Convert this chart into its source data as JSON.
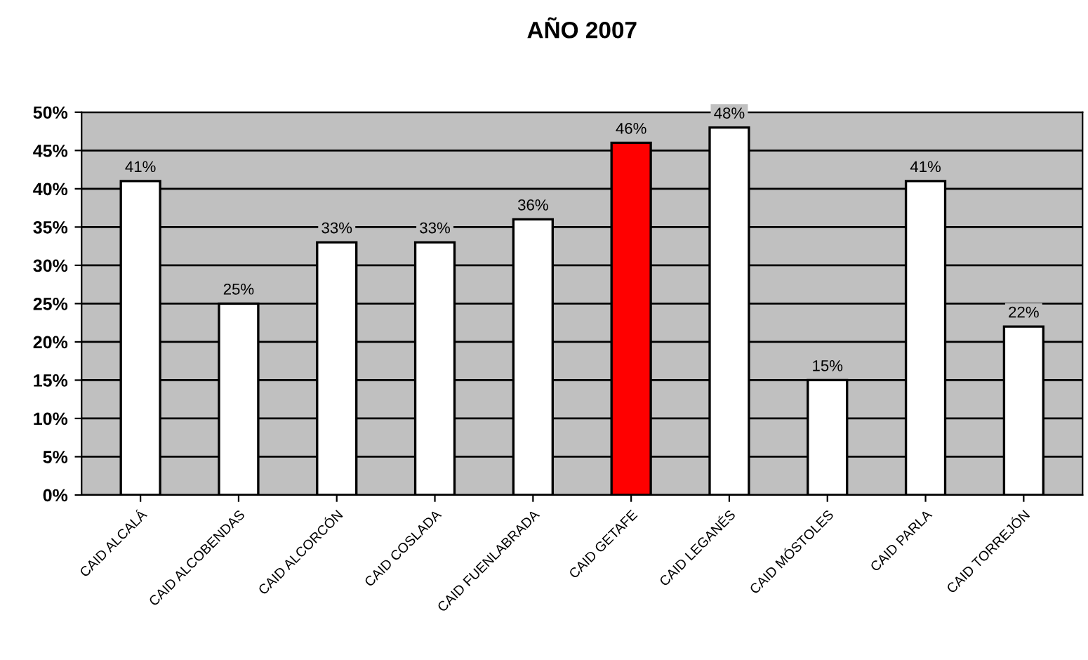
{
  "chart_data": {
    "type": "bar",
    "title": "AÑO 2007",
    "categories": [
      "CAID ALCALÁ",
      "CAID ALCOBENDAS",
      "CAID ALCORCÓN",
      "CAID COSLADA",
      "CAID FUENLABRADA",
      "CAID GETAFE",
      "CAID LEGANÉS",
      "CAID MÓSTOLES",
      "CAID PARLA",
      "CAID TORREJÓN"
    ],
    "values": [
      41,
      25,
      33,
      33,
      36,
      46,
      48,
      15,
      41,
      22
    ],
    "value_labels": [
      "41%",
      "25%",
      "33%",
      "33%",
      "36%",
      "46%",
      "48%",
      "15%",
      "41%",
      "22%"
    ],
    "colors": [
      "#ffffff",
      "#ffffff",
      "#ffffff",
      "#ffffff",
      "#ffffff",
      "#ff0000",
      "#ffffff",
      "#ffffff",
      "#ffffff",
      "#ffffff"
    ],
    "ylim": [
      0,
      50
    ],
    "yticks": [
      {
        "value": 0,
        "label": "0%"
      },
      {
        "value": 5,
        "label": "5%"
      },
      {
        "value": 10,
        "label": "10%"
      },
      {
        "value": 15,
        "label": "15%"
      },
      {
        "value": 20,
        "label": "20%"
      },
      {
        "value": 25,
        "label": "25%"
      },
      {
        "value": 30,
        "label": "30%"
      },
      {
        "value": 35,
        "label": "35%"
      },
      {
        "value": 40,
        "label": "40%"
      },
      {
        "value": 45,
        "label": "45%"
      },
      {
        "value": 50,
        "label": "50%"
      }
    ],
    "grid": "y"
  }
}
